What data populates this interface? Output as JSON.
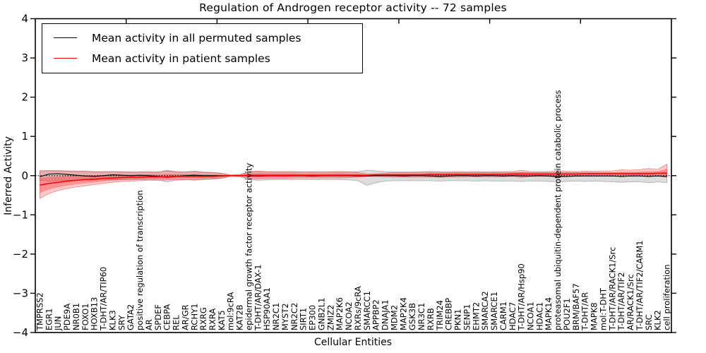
{
  "chart_data": {
    "type": "line",
    "title": "Regulation of Androgen receptor activity -- 72 samples",
    "xlabel": "Cellular Entities",
    "ylabel": "Inferred Activity",
    "ylim": [
      -4,
      4
    ],
    "yticks": [
      -4,
      -3,
      -2,
      -1,
      0,
      1,
      2,
      3,
      4
    ],
    "x_major_tick_every": 10,
    "grid": false,
    "legend_position": "upper left",
    "zero_reference_line": 0,
    "categories": [
      "TMPRSS2",
      "EGR1",
      "JUN",
      "PDE9A",
      "NR0B1",
      "FOXO1",
      "HOXB13",
      "T-DHT/AR/TIP60",
      "KLK3",
      "SRY",
      "GATA2",
      "positive regulation of transcription",
      "AR",
      "SPDEF",
      "CEBPA",
      "REL",
      "AR/GR",
      "RCHY1",
      "RXRG",
      "RXRA",
      "KAT5",
      "mol:9cRA",
      "KAT2B",
      "epidermal growth factor receptor activity",
      "T-DHT/AR/DAX-1",
      "HSP90AA1",
      "NR2C1",
      "MYST2",
      "NR2C2",
      "SIRT1",
      "EP300",
      "GNB2L1",
      "ZMIZ2",
      "MAP2K6",
      "NCOA2",
      "RXRs/9cRA",
      "SMARCC1",
      "APPBP2",
      "DNAJA1",
      "MDM2",
      "MAP2K4",
      "GSK3B",
      "NR3C1",
      "RXRB",
      "TRIM24",
      "CREBBP",
      "PKN1",
      "SENP1",
      "EHMT2",
      "SMARCA2",
      "SMARCE1",
      "CARM1",
      "HDAC7",
      "T-DHT/AR/Hsp90",
      "NCOA1",
      "HDAC1",
      "MAPK14",
      "proteasomal ubiquitin-dependent protein catabolic process",
      "POU2F1",
      "BRM/BAF57",
      "T-DHT/AR",
      "MAPK8",
      "mol:T-DHT",
      "T-DHT/AR/RACK1/Src",
      "T-DHT/AR/TIF2",
      "AR/RACK1/Src",
      "T-DHT/AR/TIF2/CARM1",
      "SRC",
      "KLK2",
      "cell proliferation"
    ],
    "series": [
      {
        "name": "Mean activity in all permuted samples",
        "color": "#000000",
        "values": [
          -0.03,
          0.04,
          0.05,
          0.03,
          0.01,
          -0.01,
          -0.02,
          0.0,
          0.02,
          0.01,
          0.0,
          0.01,
          0.0,
          -0.02,
          -0.04,
          -0.02,
          0.0,
          0.01,
          0.0,
          0.0,
          0.0,
          0.0,
          0.0,
          0.0,
          -0.01,
          0.0,
          0.0,
          0.0,
          0.0,
          0.0,
          -0.01,
          0.0,
          0.0,
          0.0,
          0.0,
          -0.01,
          -0.01,
          0.0,
          0.0,
          0.0,
          -0.01,
          0.0,
          0.0,
          -0.01,
          -0.02,
          -0.01,
          0.0,
          0.0,
          -0.01,
          0.0,
          0.0,
          -0.01,
          0.0,
          -0.01,
          -0.01,
          0.0,
          -0.01,
          -0.02,
          -0.02,
          -0.01,
          -0.01,
          -0.01,
          -0.01,
          -0.01,
          -0.02,
          -0.01,
          -0.01,
          -0.02,
          -0.01,
          -0.02
        ]
      },
      {
        "name": "Mean activity in patient samples",
        "color": "#ff0000",
        "values": [
          -0.24,
          -0.2,
          -0.17,
          -0.14,
          -0.12,
          -0.1,
          -0.09,
          -0.07,
          -0.06,
          -0.05,
          -0.04,
          -0.04,
          -0.03,
          -0.03,
          -0.03,
          -0.02,
          -0.02,
          -0.02,
          -0.02,
          -0.02,
          -0.01,
          0.0,
          0.0,
          0.01,
          0.01,
          0.01,
          0.01,
          0.01,
          0.01,
          0.01,
          0.01,
          0.01,
          0.01,
          0.01,
          0.01,
          0.01,
          0.01,
          0.02,
          0.02,
          0.02,
          0.02,
          0.02,
          0.02,
          0.03,
          0.03,
          0.03,
          0.03,
          0.03,
          0.03,
          0.03,
          0.03,
          0.03,
          0.04,
          0.04,
          0.04,
          0.04,
          0.04,
          0.04,
          0.04,
          0.04,
          0.05,
          0.05,
          0.05,
          0.05,
          0.05,
          0.05,
          0.05,
          0.05,
          0.06,
          0.06
        ]
      }
    ],
    "bands": [
      {
        "name": "permuted samples spread",
        "color": "#8c8c8c",
        "upper": [
          0.1,
          0.12,
          0.12,
          0.11,
          0.1,
          0.1,
          0.09,
          0.1,
          0.1,
          0.09,
          0.09,
          0.09,
          0.09,
          0.08,
          0.14,
          0.1,
          0.09,
          0.12,
          0.09,
          0.08,
          0.06,
          0.02,
          0.03,
          0.09,
          0.1,
          0.09,
          0.09,
          0.09,
          0.09,
          0.09,
          0.09,
          0.09,
          0.09,
          0.09,
          0.09,
          0.1,
          0.14,
          0.12,
          0.1,
          0.09,
          0.09,
          0.09,
          0.09,
          0.09,
          0.09,
          0.08,
          0.08,
          0.08,
          0.08,
          0.08,
          0.08,
          0.08,
          0.08,
          0.08,
          0.08,
          0.08,
          0.08,
          0.08,
          0.08,
          0.08,
          0.07,
          0.07,
          0.07,
          0.07,
          0.07,
          0.07,
          0.07,
          0.07,
          0.07,
          0.08
        ],
        "lower": [
          -0.12,
          -0.14,
          -0.13,
          -0.12,
          -0.12,
          -0.11,
          -0.11,
          -0.11,
          -0.1,
          -0.1,
          -0.1,
          -0.1,
          -0.1,
          -0.11,
          -0.16,
          -0.12,
          -0.1,
          -0.12,
          -0.1,
          -0.09,
          -0.07,
          -0.02,
          -0.03,
          -0.1,
          -0.12,
          -0.11,
          -0.1,
          -0.1,
          -0.1,
          -0.1,
          -0.1,
          -0.1,
          -0.1,
          -0.1,
          -0.11,
          -0.13,
          -0.25,
          -0.18,
          -0.14,
          -0.13,
          -0.13,
          -0.13,
          -0.13,
          -0.13,
          -0.14,
          -0.13,
          -0.13,
          -0.13,
          -0.14,
          -0.13,
          -0.14,
          -0.14,
          -0.14,
          -0.15,
          -0.14,
          -0.14,
          -0.15,
          -0.16,
          -0.15,
          -0.14,
          -0.15,
          -0.14,
          -0.15,
          -0.16,
          -0.17,
          -0.16,
          -0.16,
          -0.18,
          -0.16,
          -0.18
        ]
      },
      {
        "name": "patient samples spread",
        "color": "#ff2222",
        "upper": [
          0.13,
          0.13,
          0.13,
          0.12,
          0.12,
          0.12,
          0.1,
          0.1,
          0.1,
          0.1,
          0.09,
          0.09,
          0.1,
          0.09,
          0.12,
          0.1,
          0.09,
          0.1,
          0.08,
          0.08,
          0.06,
          0.01,
          0.02,
          0.1,
          0.12,
          0.1,
          0.1,
          0.1,
          0.1,
          0.09,
          0.1,
          0.09,
          0.1,
          0.1,
          0.1,
          0.08,
          0.04,
          0.05,
          0.06,
          0.08,
          0.08,
          0.08,
          0.09,
          0.1,
          0.09,
          0.09,
          0.1,
          0.09,
          0.1,
          0.09,
          0.1,
          0.1,
          0.1,
          0.14,
          0.1,
          0.1,
          0.1,
          0.13,
          0.11,
          0.1,
          0.12,
          0.11,
          0.12,
          0.12,
          0.15,
          0.14,
          0.15,
          0.18,
          0.16,
          0.29
        ],
        "lower": [
          -0.58,
          -0.46,
          -0.38,
          -0.33,
          -0.29,
          -0.26,
          -0.23,
          -0.2,
          -0.17,
          -0.15,
          -0.14,
          -0.13,
          -0.12,
          -0.12,
          -0.11,
          -0.1,
          -0.1,
          -0.1,
          -0.09,
          -0.08,
          -0.06,
          -0.01,
          -0.02,
          -0.07,
          -0.08,
          -0.07,
          -0.07,
          -0.07,
          -0.06,
          -0.06,
          -0.06,
          -0.06,
          -0.06,
          -0.06,
          -0.05,
          -0.04,
          -0.02,
          -0.02,
          -0.03,
          -0.04,
          -0.04,
          -0.04,
          -0.04,
          -0.04,
          -0.04,
          -0.04,
          -0.04,
          -0.03,
          -0.03,
          -0.03,
          -0.03,
          -0.03,
          -0.02,
          -0.05,
          -0.02,
          -0.02,
          -0.02,
          -0.04,
          -0.02,
          -0.02,
          -0.01,
          -0.01,
          -0.01,
          -0.01,
          -0.02,
          -0.01,
          -0.01,
          -0.02,
          -0.01,
          -0.04
        ]
      }
    ]
  }
}
